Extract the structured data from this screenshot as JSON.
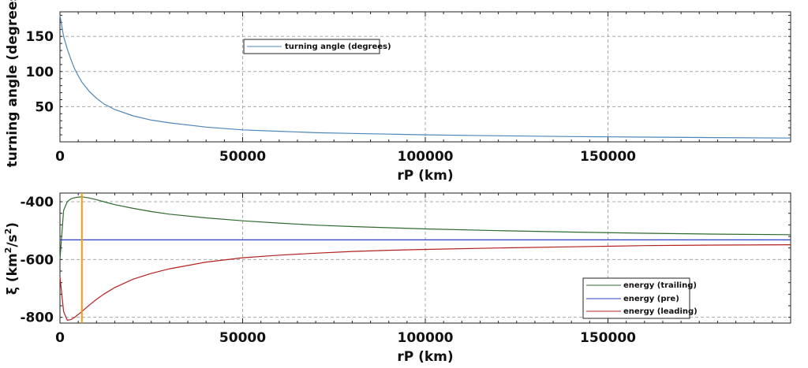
{
  "chart_data": [
    {
      "type": "line",
      "xlabel": "rP (km)",
      "ylabel": "turning angle (degrees)",
      "xlim": [
        0,
        200000
      ],
      "ylim": [
        0,
        185
      ],
      "xticks": [
        0,
        50000,
        100000,
        150000
      ],
      "xtick_labels": [
        "0",
        "50000",
        "100000",
        "150000"
      ],
      "yticks": [
        50,
        100,
        150
      ],
      "ytick_labels": [
        "50",
        "100",
        "150"
      ],
      "grid": true,
      "legend_position": "top-center",
      "series": [
        {
          "name": "turning angle (degrees)",
          "color": "#4f86b8",
          "x": [
            0,
            1000,
            2000,
            3000,
            4000,
            5000,
            6000,
            8000,
            10000,
            12000,
            15000,
            20000,
            25000,
            30000,
            40000,
            50000,
            60000,
            70000,
            80000,
            90000,
            100000,
            120000,
            140000,
            160000,
            180000,
            200000
          ],
          "y": [
            180,
            150,
            132,
            117,
            104,
            94,
            85,
            72,
            62,
            54,
            46,
            37,
            31,
            27,
            21,
            17,
            15,
            13,
            12,
            11,
            10,
            8.6,
            7.5,
            6.7,
            6,
            5.4
          ]
        }
      ]
    },
    {
      "type": "line",
      "xlabel": "rP (km)",
      "ylabel": "ξ (km²/s²)",
      "ylabel_parts": {
        "main": "ξ (km",
        "sup1": "2",
        "mid": "/s",
        "sup2": "2",
        "end": ")"
      },
      "xlim": [
        0,
        200000
      ],
      "ylim": [
        -820,
        -370
      ],
      "xticks": [
        0,
        50000,
        100000,
        150000
      ],
      "xtick_labels": [
        "0",
        "50000",
        "100000",
        "150000"
      ],
      "yticks": [
        -400,
        -600,
        -800
      ],
      "ytick_labels": [
        "-400",
        "-600",
        "-800"
      ],
      "grid": true,
      "legend_position": "bottom-right",
      "vertical_marker": {
        "x": 6000,
        "color": "#f39c12"
      },
      "series": [
        {
          "name": "energy (trailing)",
          "color": "#2e6b2e",
          "x": [
            0,
            1000,
            2000,
            3000,
            4000,
            5000,
            6000,
            8000,
            10000,
            12000,
            15000,
            20000,
            25000,
            30000,
            40000,
            50000,
            60000,
            70000,
            80000,
            90000,
            100000,
            120000,
            140000,
            160000,
            180000,
            200000
          ],
          "y": [
            -600,
            -430,
            -400,
            -390,
            -386,
            -384,
            -383,
            -387,
            -393,
            -400,
            -410,
            -423,
            -434,
            -443,
            -456,
            -466,
            -474,
            -481,
            -486,
            -490,
            -494,
            -500,
            -505,
            -509,
            -512,
            -514
          ]
        },
        {
          "name": "energy (pre)",
          "color": "#2b3fcc",
          "x": [
            0,
            200000
          ],
          "y": [
            -532,
            -532
          ]
        },
        {
          "name": "energy (leading)",
          "color": "#b32020",
          "x": [
            0,
            1000,
            2000,
            3000,
            4000,
            5000,
            6000,
            8000,
            10000,
            12000,
            15000,
            20000,
            25000,
            30000,
            40000,
            50000,
            60000,
            70000,
            80000,
            90000,
            100000,
            120000,
            140000,
            160000,
            180000,
            200000
          ],
          "y": [
            -660,
            -780,
            -810,
            -808,
            -800,
            -790,
            -780,
            -758,
            -738,
            -720,
            -697,
            -668,
            -648,
            -632,
            -609,
            -594,
            -585,
            -578,
            -572,
            -568,
            -565,
            -560,
            -556,
            -552,
            -550,
            -549
          ]
        }
      ]
    }
  ]
}
